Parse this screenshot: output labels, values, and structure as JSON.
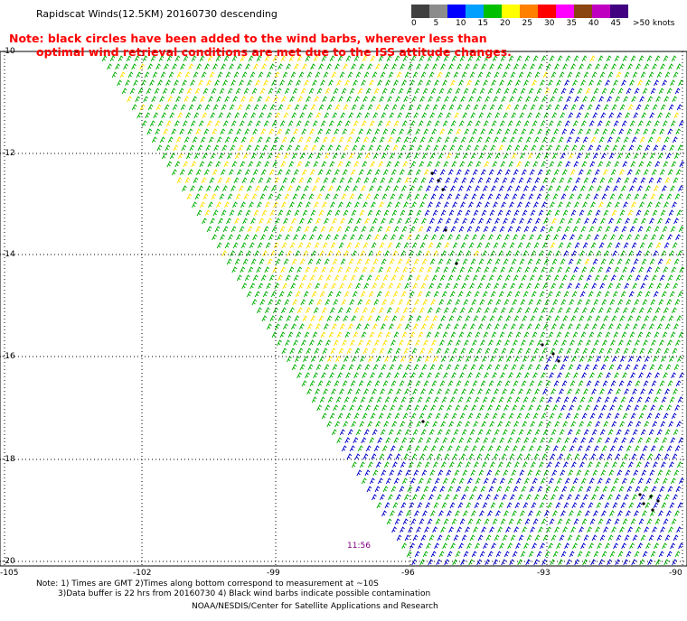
{
  "header": {
    "title": "Rapidscat Winds(12.5KM) 20160730 descending",
    "note_line1": "Note: black circles have been added to the wind barbs, wherever less than",
    "note_line2": "optimal wind retrieval conditions are met due to the ISS attitude changes."
  },
  "colorbar": {
    "colors": [
      "#404040",
      "#8c8c8c",
      "#0000ff",
      "#00a0ff",
      "#00c000",
      "#ffff00",
      "#ff8000",
      "#ff0000",
      "#ff00ff",
      "#8b4513",
      "#c000c0",
      "#400080"
    ],
    "labels": [
      "0",
      "5",
      "10",
      "15",
      "20",
      "25",
      "30",
      "35",
      "40",
      "45",
      ">50 knots"
    ],
    "unit": "knots"
  },
  "map": {
    "lat_labels": [
      "-10",
      "-12",
      "-14",
      "-16",
      "-18",
      "-20"
    ],
    "lon_labels": [
      "-105",
      "-102",
      "-99",
      "-96",
      "-93",
      "-90"
    ],
    "time_label": "11:56",
    "barb_colors": {
      "green": "#00b000",
      "yellow": "#ffe000",
      "blue": "#0000c8",
      "black": "#000000"
    }
  },
  "footer": {
    "line1": "Note: 1) Times are GMT 2)Times along bottom correspond to measurement at ~10S",
    "line2": "3)Data buffer is 22 hrs from 20160730 4) Black wind barbs indicate possible contamination",
    "line3": "NOAA/NESDIS/Center for Satellite Applications and Research"
  }
}
